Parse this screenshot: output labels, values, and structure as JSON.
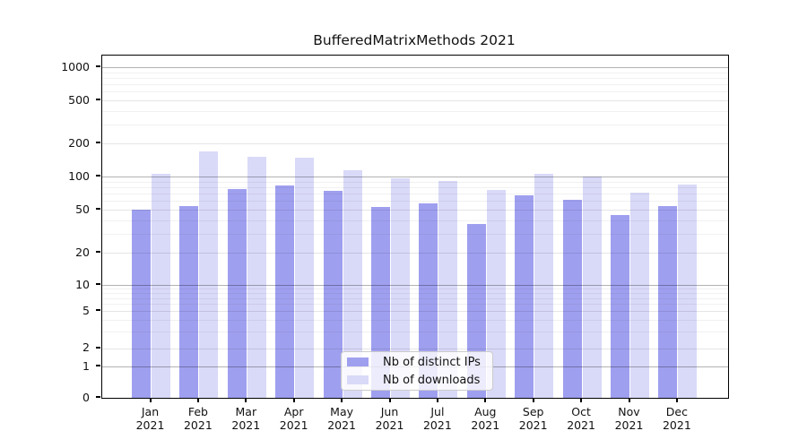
{
  "title": "BufferedMatrixMethods 2021",
  "colors": {
    "distinct_ips": "#9f9ff0",
    "downloads": "#d9d9f8",
    "grid_major": "rgba(0,0,0,0.30)",
    "grid_mid": "rgba(0,0,0,0.10)",
    "grid_minor": "rgba(0,0,0,0.055)"
  },
  "y_axis": {
    "tick_labels": [
      "0",
      "1",
      "2",
      "5",
      "10",
      "20",
      "50",
      "100",
      "200",
      "500",
      "1000"
    ],
    "tick_values": [
      0,
      1,
      2,
      5,
      10,
      20,
      50,
      100,
      200,
      500,
      1000
    ]
  },
  "x_axis": {
    "months": [
      "Jan",
      "Feb",
      "Mar",
      "Apr",
      "May",
      "Jun",
      "Jul",
      "Aug",
      "Sep",
      "Oct",
      "Nov",
      "Dec"
    ],
    "year": "2021"
  },
  "legend": {
    "items": [
      {
        "label": "Nb of distinct IPs",
        "color_key": "distinct_ips"
      },
      {
        "label": "Nb of downloads",
        "color_key": "downloads"
      }
    ]
  },
  "chart_data": {
    "type": "bar",
    "title": "BufferedMatrixMethods 2021",
    "categories": [
      "Jan 2021",
      "Feb 2021",
      "Mar 2021",
      "Apr 2021",
      "May 2021",
      "Jun 2021",
      "Jul 2021",
      "Aug 2021",
      "Sep 2021",
      "Oct 2021",
      "Nov 2021",
      "Dec 2021"
    ],
    "series": [
      {
        "name": "Nb of distinct IPs",
        "values": [
          50,
          54,
          77,
          83,
          74,
          53,
          57,
          37,
          67,
          61,
          45,
          54
        ]
      },
      {
        "name": "Nb of downloads",
        "values": [
          106,
          168,
          150,
          149,
          115,
          97,
          91,
          75,
          106,
          100,
          72,
          84
        ]
      }
    ],
    "xlabel": "",
    "ylabel": "",
    "yscale": "log-like (0,1,2,5,10,20,50,100,200,500,1000)",
    "ylim": [
      0,
      1000
    ],
    "grid": "horizontal, major+minor, drawn over bars",
    "legend_position": "bottom-center inside plot"
  }
}
